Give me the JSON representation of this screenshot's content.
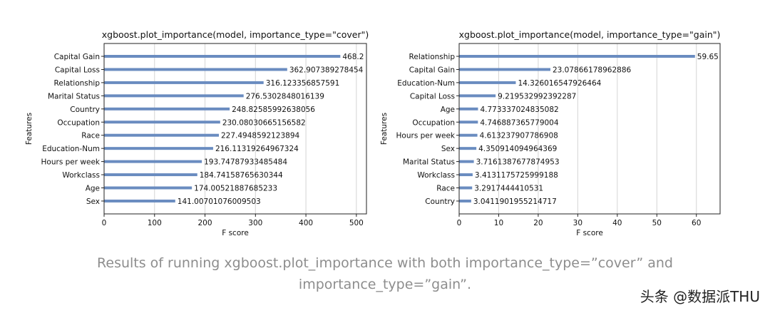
{
  "chart_data": [
    {
      "type": "bar",
      "orientation": "horizontal",
      "title": "xgboost.plot_importance(model, importance_type=\"cover\")",
      "xlabel": "F score",
      "ylabel": "Features",
      "xlim": [
        0,
        520
      ],
      "xticks": [
        "0",
        "100",
        "200",
        "300",
        "400",
        "500"
      ],
      "grid": true,
      "categories": [
        "Capital Gain",
        "Capital Loss",
        "Relationship",
        "Marital Status",
        "Country",
        "Occupation",
        "Race",
        "Education-Num",
        "Hours per week",
        "Workclass",
        "Age",
        "Sex"
      ],
      "values": [
        468.2,
        362.907389278454,
        316.123356857591,
        276.5302848016139,
        248.82585992638056,
        230.08030665156582,
        227.4948592123894,
        216.11319264967324,
        193.74787933485484,
        184.74158765630344,
        174.00521887685233,
        141.00701076009503
      ],
      "value_labels": [
        "468.2",
        "362.907389278454",
        "316.123356857591",
        "276.5302848016139",
        "248.82585992638056",
        "230.08030665156582",
        "227.4948592123894",
        "216.11319264967324",
        "193.74787933485484",
        "184.74158765630344",
        "174.00521887685233",
        "141.00701076009503"
      ]
    },
    {
      "type": "bar",
      "orientation": "horizontal",
      "title": "xgboost.plot_importance(model, importance_type=\"gain\")",
      "xlabel": "F score",
      "ylabel": "Features",
      "xlim": [
        0,
        66
      ],
      "xticks": [
        "0",
        "10",
        "20",
        "30",
        "40",
        "50",
        "60"
      ],
      "grid": true,
      "categories": [
        "Relationship",
        "Capital Gain",
        "Education-Num",
        "Capital Loss",
        "Age",
        "Occupation",
        "Hours per week",
        "Sex",
        "Marital Status",
        "Workclass",
        "Race",
        "Country"
      ],
      "values": [
        59.65,
        23.07866178962886,
        14.326016547926464,
        9.219532992392287,
        4.773337024835082,
        4.746887365779004,
        4.613237907786908,
        4.350914094964369,
        3.7161387677874953,
        3.4131175725999188,
        3.2917444410531,
        3.0411901955214717
      ],
      "value_labels": [
        "59.65",
        "23.07866178962886",
        "14.326016547926464",
        "9.219532992392287",
        "4.773337024835082",
        "4.746887365779004",
        "4.613237907786908",
        "4.350914094964369",
        "3.7161387677874953",
        "3.4131175725999188",
        "3.2917444410531",
        "3.0411901955214717"
      ]
    }
  ],
  "bar_color": "#6a8cc0",
  "caption": {
    "line1": "Results of running xgboost.plot_importance with both importance_type=”cover” and",
    "line2": "importance_type=”gain”."
  },
  "watermark": "头条 @数据派THU"
}
